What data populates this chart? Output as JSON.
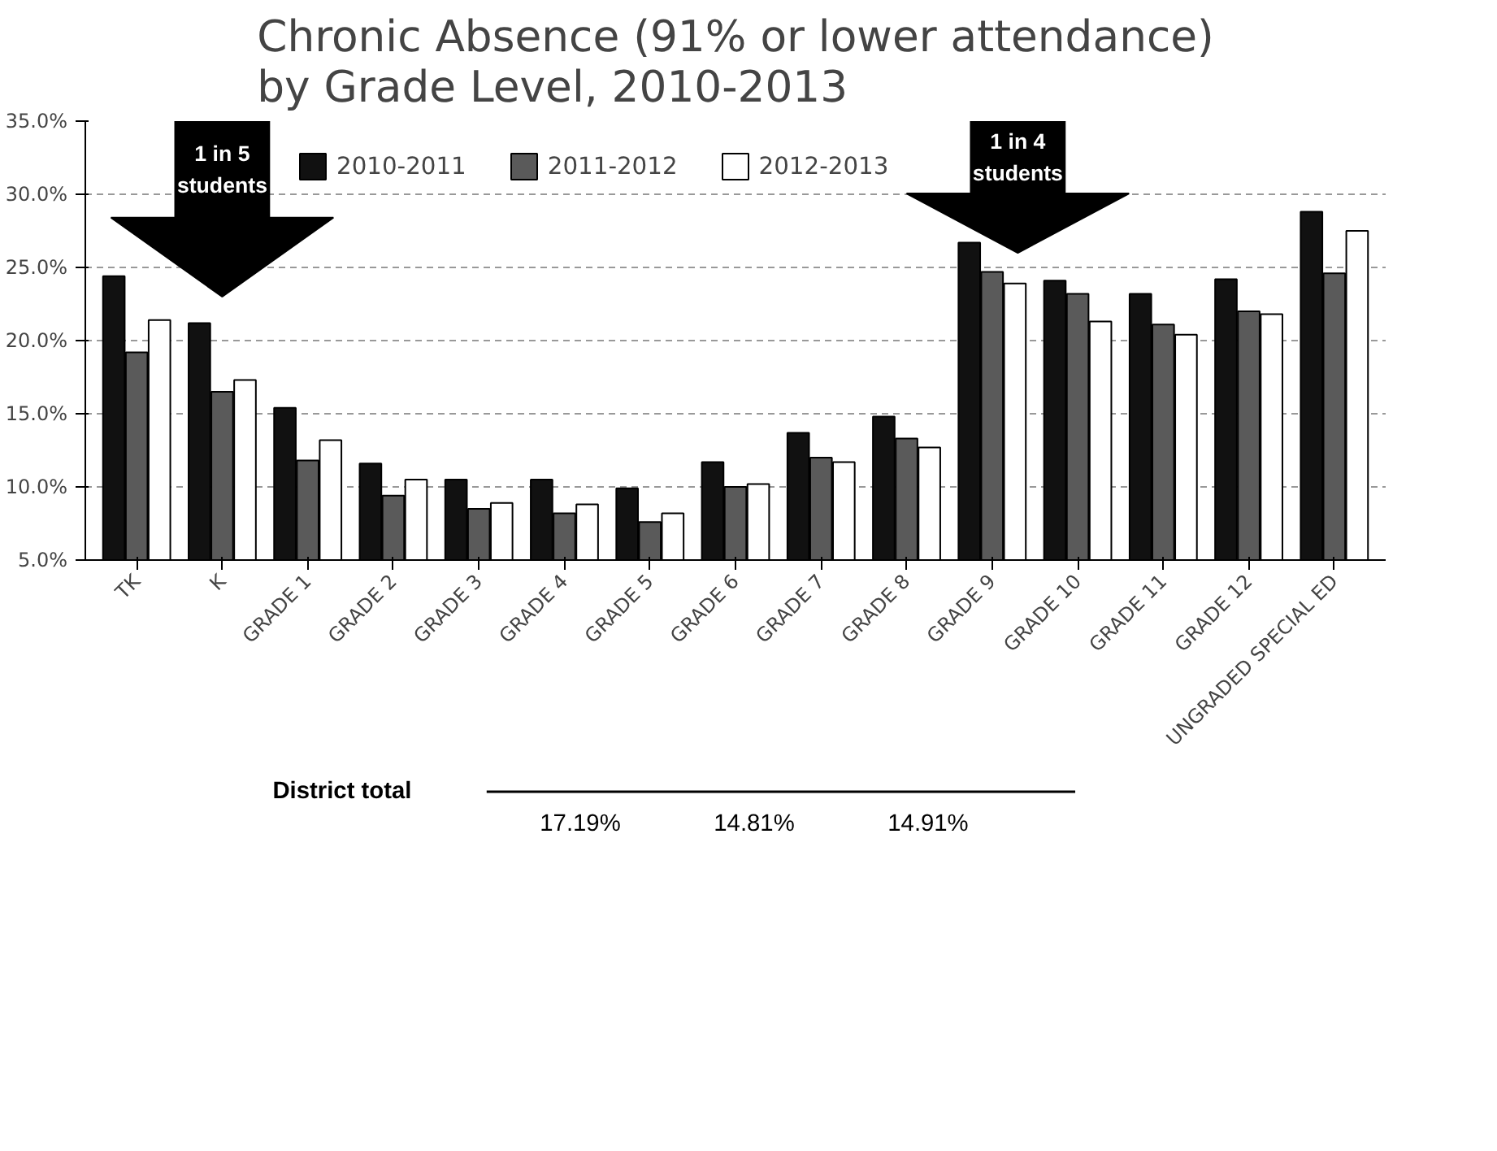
{
  "chart_data": {
    "type": "bar",
    "title": "Chronic Absence (91% or lower attendance)\nby Grade Level, 2010-2013",
    "categories": [
      "TK",
      "K",
      "GRADE 1",
      "GRADE 2",
      "GRADE 3",
      "GRADE 4",
      "GRADE 5",
      "GRADE 6",
      "GRADE 7",
      "GRADE 8",
      "GRADE 9",
      "GRADE 10",
      "GRADE 11",
      "GRADE 12",
      "UNGRADED SPECIAL ED"
    ],
    "series": [
      {
        "name": "2010-2011",
        "color": "#111111",
        "values": [
          24.4,
          21.2,
          15.4,
          11.6,
          10.5,
          10.5,
          9.9,
          11.7,
          13.7,
          14.8,
          26.7,
          24.1,
          23.2,
          24.2,
          28.8
        ]
      },
      {
        "name": "2011-2012",
        "color": "#5a5a5a",
        "values": [
          19.2,
          16.5,
          11.8,
          9.4,
          8.5,
          8.2,
          7.6,
          10.0,
          12.0,
          13.3,
          24.7,
          23.2,
          21.1,
          22.0,
          24.6
        ]
      },
      {
        "name": "2012-2013",
        "color": "#ffffff",
        "values": [
          21.4,
          17.3,
          13.2,
          10.5,
          8.9,
          8.8,
          8.2,
          10.2,
          11.7,
          12.7,
          23.9,
          21.3,
          20.4,
          21.8,
          27.5
        ]
      }
    ],
    "ylim": [
      5,
      35
    ],
    "yticks": [
      {
        "value": 5,
        "label": "5.0%"
      },
      {
        "value": 10,
        "label": "10.0%"
      },
      {
        "value": 15,
        "label": "15.0%"
      },
      {
        "value": 20,
        "label": "20.0%"
      },
      {
        "value": 25,
        "label": "25.0%"
      },
      {
        "value": 30,
        "label": "30.0%"
      },
      {
        "value": 35,
        "label": "35.0%"
      }
    ],
    "grid": "y",
    "legend": "top",
    "annotations": [
      "1 in 5\nstudents",
      "1 in 4\nstudents",
      "District total",
      "17.19%",
      "14.81%",
      "14.91%"
    ]
  }
}
